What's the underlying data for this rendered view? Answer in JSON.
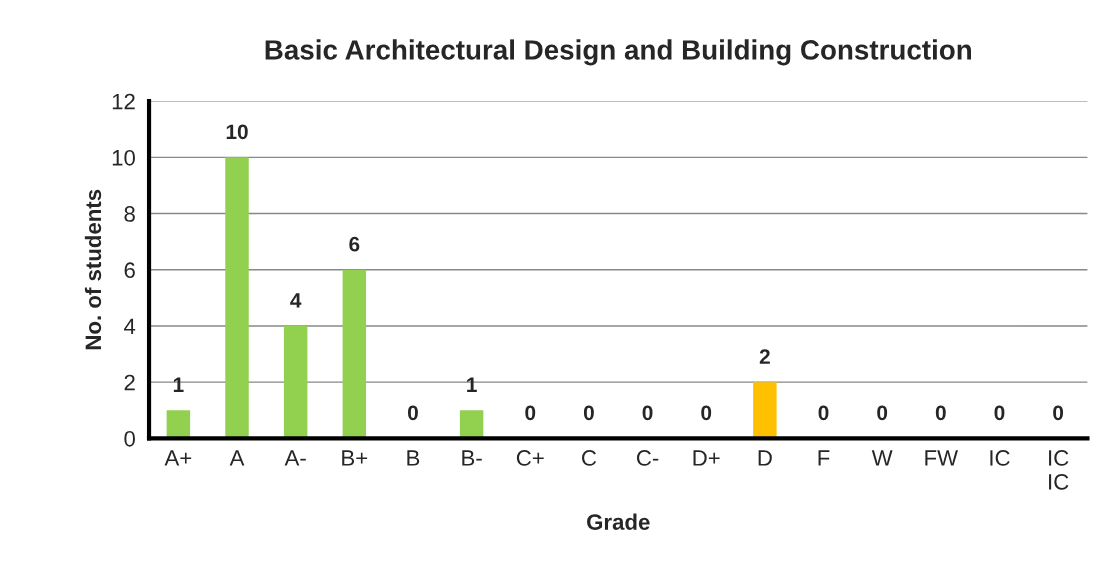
{
  "chart_data": {
    "type": "bar",
    "title": "Basic Architectural Design and Building Construction",
    "xlabel": "Grade",
    "ylabel": "No. of students",
    "categories": [
      "A+",
      "A",
      "A-",
      "B+",
      "B",
      "B-",
      "C+",
      "C",
      "C-",
      "D+",
      "D",
      "F",
      "W",
      "FW",
      "IC",
      "IC\nIC"
    ],
    "values": [
      1,
      10,
      4,
      6,
      0,
      1,
      0,
      0,
      0,
      0,
      2,
      0,
      0,
      0,
      0,
      0
    ],
    "colors": [
      "#92d050",
      "#92d050",
      "#92d050",
      "#92d050",
      "#92d050",
      "#92d050",
      "#92d050",
      "#92d050",
      "#92d050",
      "#92d050",
      "#ffc000",
      "#92d050",
      "#92d050",
      "#92d050",
      "#92d050",
      "#92d050"
    ],
    "ylim": [
      0,
      12
    ],
    "yticks": [
      0,
      2,
      4,
      6,
      8,
      10,
      12
    ],
    "grid": "y",
    "data_labels": true,
    "legend": false
  }
}
